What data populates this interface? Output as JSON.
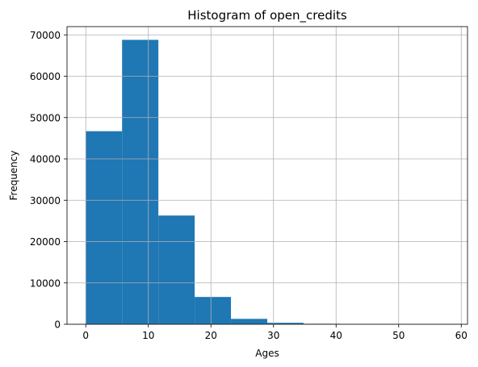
{
  "chart_data": {
    "type": "bar",
    "title": "Histogram of open_credits",
    "xlabel": "Ages",
    "ylabel": "Frequency",
    "xlim": [
      -3,
      61
    ],
    "ylim": [
      0,
      72000
    ],
    "grid": true,
    "bar_color": "#1f77b4",
    "bins": [
      {
        "start": 0.0,
        "end": 5.8,
        "value": 46700
      },
      {
        "start": 5.8,
        "end": 11.6,
        "value": 68800
      },
      {
        "start": 11.6,
        "end": 17.4,
        "value": 26300
      },
      {
        "start": 17.4,
        "end": 23.2,
        "value": 6600
      },
      {
        "start": 23.2,
        "end": 29.0,
        "value": 1300
      },
      {
        "start": 29.0,
        "end": 34.8,
        "value": 350
      },
      {
        "start": 34.8,
        "end": 40.6,
        "value": 120
      },
      {
        "start": 40.6,
        "end": 46.4,
        "value": 40
      },
      {
        "start": 46.4,
        "end": 52.2,
        "value": 15
      },
      {
        "start": 52.2,
        "end": 58.0,
        "value": 5
      }
    ],
    "x_ticks": [
      {
        "value": 0,
        "label": "0"
      },
      {
        "value": 10,
        "label": "10"
      },
      {
        "value": 20,
        "label": "20"
      },
      {
        "value": 30,
        "label": "30"
      },
      {
        "value": 40,
        "label": "40"
      },
      {
        "value": 50,
        "label": "50"
      },
      {
        "value": 60,
        "label": "60"
      }
    ],
    "y_ticks": [
      {
        "value": 0,
        "label": "0"
      },
      {
        "value": 10000,
        "label": "10000"
      },
      {
        "value": 20000,
        "label": "20000"
      },
      {
        "value": 30000,
        "label": "30000"
      },
      {
        "value": 40000,
        "label": "40000"
      },
      {
        "value": 50000,
        "label": "50000"
      },
      {
        "value": 60000,
        "label": "60000"
      },
      {
        "value": 70000,
        "label": "70000"
      }
    ]
  }
}
